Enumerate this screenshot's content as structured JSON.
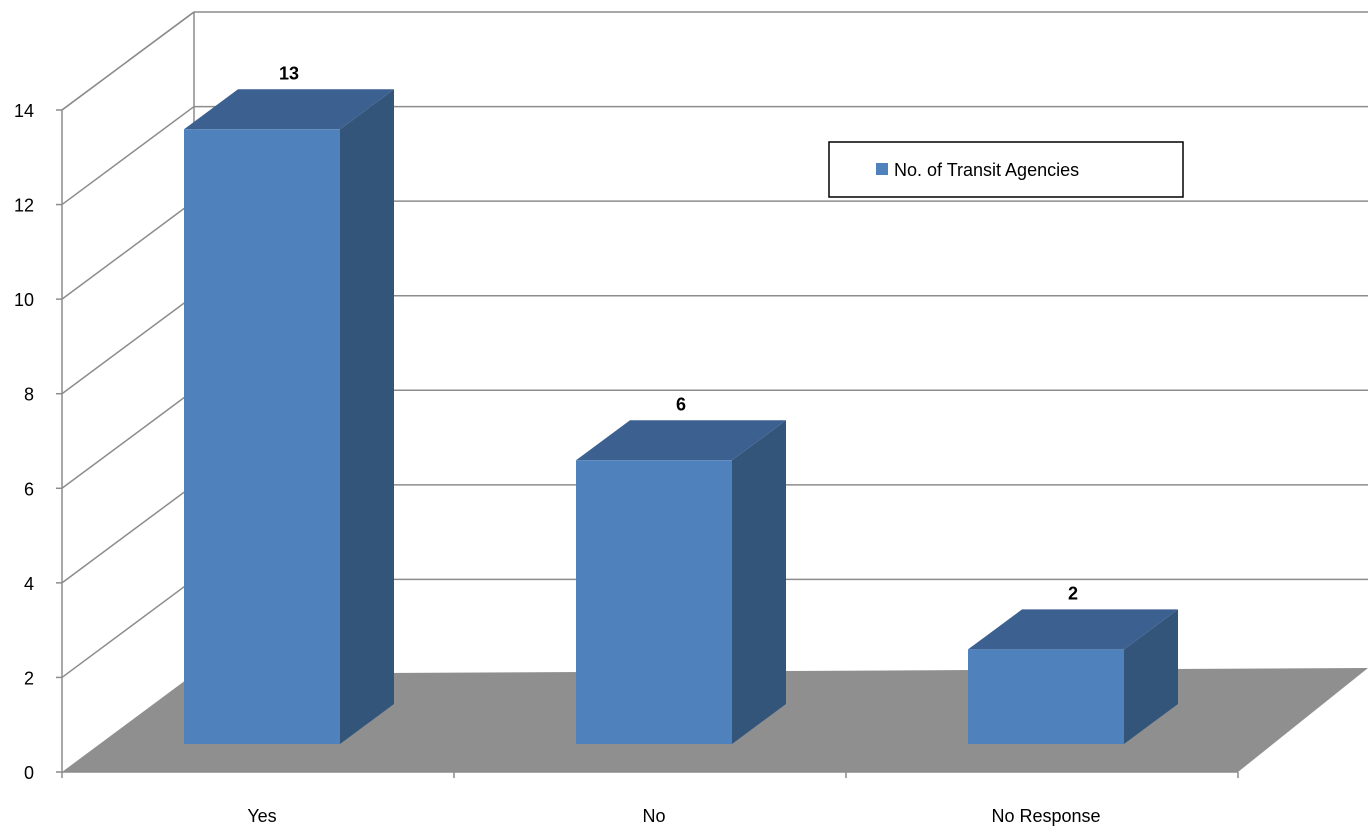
{
  "chart_data": {
    "type": "bar",
    "categories": [
      "Yes",
      "No",
      "No Response"
    ],
    "series": [
      {
        "name": "No. of Transit Agencies",
        "values": [
          13,
          6,
          2
        ]
      }
    ],
    "ylim": [
      0,
      14
    ],
    "yticks": [
      0,
      2,
      4,
      6,
      8,
      10,
      12,
      14
    ],
    "grid": true,
    "legend_position": "top-right",
    "colors": {
      "bar_front": "#4F81BD",
      "bar_top": "#3C6190",
      "bar_side": "#335579",
      "floor": "#8F8F8F",
      "grid": "#8C8C8C"
    }
  }
}
